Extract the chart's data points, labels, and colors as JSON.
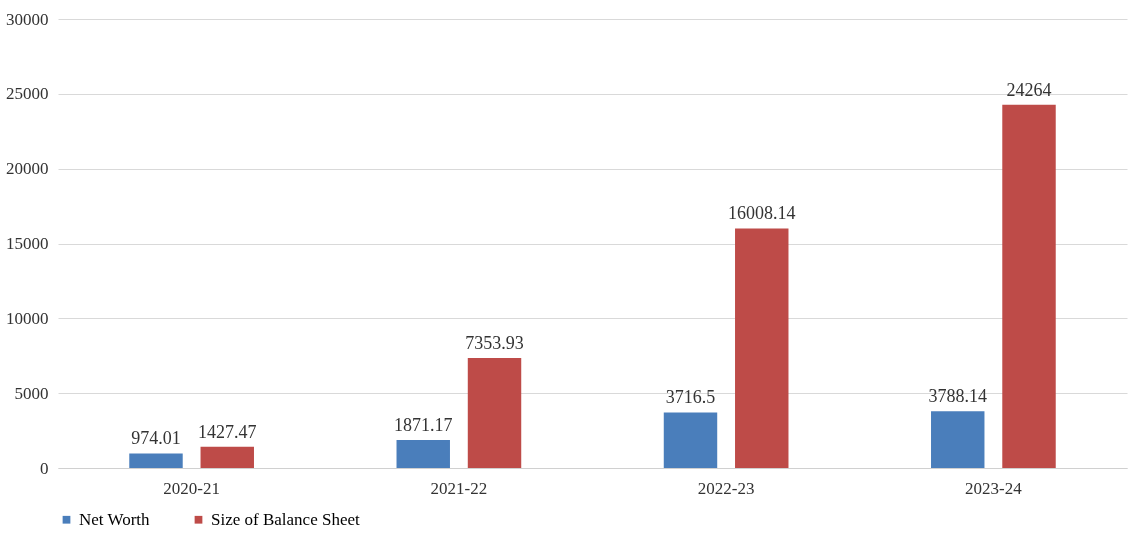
{
  "chart_data": {
    "type": "bar",
    "categories": [
      "2020-21",
      "2021-22",
      "2022-23",
      "2023-24"
    ],
    "series": [
      {
        "name": "Net Worth",
        "color": "#4a7ebb",
        "values": [
          974.01,
          1871.17,
          3716.5,
          3788.14
        ]
      },
      {
        "name": "Size of Balance Sheet",
        "color": "#be4b48",
        "values": [
          1427.47,
          7353.93,
          16008.14,
          24264
        ]
      }
    ],
    "ylim": [
      0,
      30000
    ],
    "yticks": [
      0,
      5000,
      10000,
      15000,
      20000,
      25000,
      30000
    ],
    "grid": "y",
    "legend": "bottom",
    "data_labels": true
  }
}
